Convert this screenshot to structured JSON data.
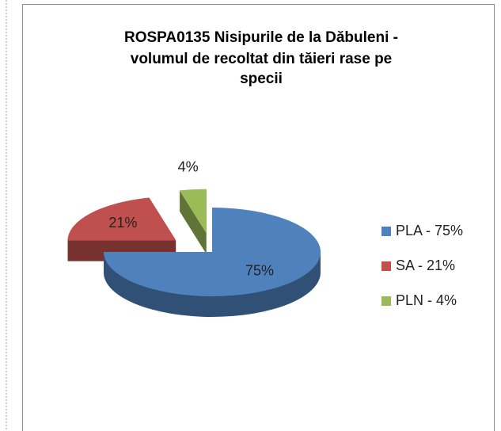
{
  "chart_data": {
    "type": "pie3d",
    "title": [
      "ROSPA0135 Nisipurile de la Dăbuleni -",
      "volumul de recoltat din tăieri rase pe",
      "specii"
    ],
    "categories": [
      "PLA - 75%",
      "SA - 21%",
      "PLN - 4%"
    ],
    "values": [
      75,
      21,
      4
    ],
    "value_labels": [
      "75%",
      "21%",
      "4%"
    ],
    "colors": [
      "#4f81bd",
      "#c0504d",
      "#9bbb59"
    ],
    "legend": "right"
  }
}
